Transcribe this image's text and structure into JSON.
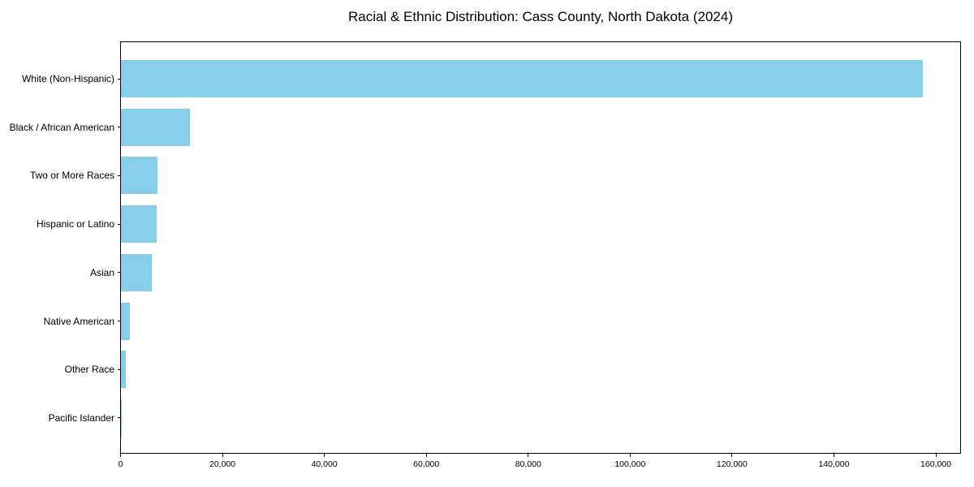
{
  "chart_data": {
    "type": "bar",
    "orientation": "horizontal",
    "title": "Racial & Ethnic Distribution: Cass County, North Dakota (2024)",
    "categories": [
      "White (Non-Hispanic)",
      "Black / African American",
      "Two or More Races",
      "Hispanic or Latino",
      "Asian",
      "Native American",
      "Other Race",
      "Pacific Islander"
    ],
    "values": [
      157300,
      13500,
      7200,
      7000,
      6100,
      1800,
      1000,
      150
    ],
    "xlabel": "",
    "ylabel": "",
    "xlim": [
      0,
      165000
    ],
    "x_ticks": [
      0,
      20000,
      40000,
      60000,
      80000,
      100000,
      120000,
      140000,
      160000
    ],
    "x_tick_labels": [
      "0",
      "20,000",
      "40,000",
      "60,000",
      "80,000",
      "100,000",
      "120,000",
      "140,000",
      "160,000"
    ],
    "bar_color": "#87CEEB",
    "grid": false,
    "legend": null
  }
}
